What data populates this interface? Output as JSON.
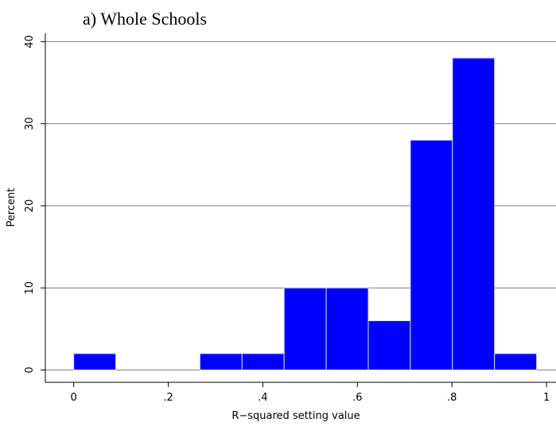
{
  "chart_data": {
    "type": "bar",
    "title": "a)  Whole Schools",
    "xlabel": "R−squared setting value",
    "ylabel": "Percent",
    "xlim": [
      -0.06,
      1.02
    ],
    "ylim": [
      -1.5,
      41
    ],
    "x_ticks": [
      0,
      0.2,
      0.4,
      0.6,
      0.8,
      1
    ],
    "x_tick_labels": [
      "0",
      ".2",
      ".4",
      ".6",
      ".8",
      "1"
    ],
    "y_ticks": [
      0,
      10,
      20,
      30,
      40
    ],
    "y_tick_labels": [
      "0",
      "10",
      "20",
      "30",
      "40"
    ],
    "grid": "horizontal",
    "bar_color": "#0000ff",
    "bars": [
      {
        "x0": 0.0,
        "x1": 0.089,
        "value": 2
      },
      {
        "x0": 0.089,
        "x1": 0.178,
        "value": 0
      },
      {
        "x0": 0.178,
        "x1": 0.267,
        "value": 0
      },
      {
        "x0": 0.267,
        "x1": 0.356,
        "value": 2
      },
      {
        "x0": 0.356,
        "x1": 0.445,
        "value": 2
      },
      {
        "x0": 0.445,
        "x1": 0.534,
        "value": 10
      },
      {
        "x0": 0.534,
        "x1": 0.623,
        "value": 10
      },
      {
        "x0": 0.623,
        "x1": 0.712,
        "value": 6
      },
      {
        "x0": 0.712,
        "x1": 0.801,
        "value": 28
      },
      {
        "x0": 0.801,
        "x1": 0.89,
        "value": 38
      },
      {
        "x0": 0.89,
        "x1": 0.979,
        "value": 2
      }
    ]
  }
}
